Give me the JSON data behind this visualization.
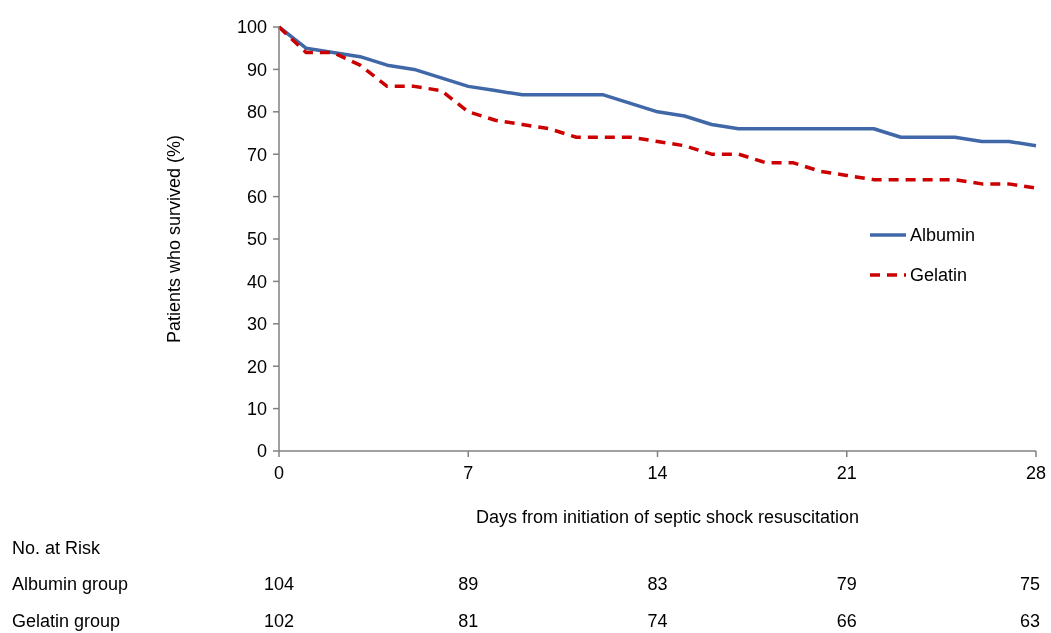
{
  "chart_data": {
    "type": "line",
    "xlabel": "Days from initiation of septic shock resuscitation",
    "ylabel": "Patients who survived (%)",
    "x": [
      0,
      1,
      2,
      3,
      4,
      5,
      6,
      7,
      8,
      9,
      10,
      11,
      12,
      13,
      14,
      15,
      16,
      17,
      18,
      19,
      20,
      21,
      22,
      23,
      24,
      25,
      26,
      27,
      28
    ],
    "series": [
      {
        "name": "Albumin",
        "color": "#4068a8",
        "line_style": "solid",
        "values": [
          100,
          95,
          94,
          93,
          91,
          90,
          88,
          86,
          85,
          84,
          84,
          84,
          84,
          82,
          80,
          79,
          77,
          76,
          76,
          76,
          76,
          76,
          76,
          74,
          74,
          74,
          73,
          73,
          72
        ]
      },
      {
        "name": "Gelatin",
        "color": "#cc0000",
        "line_style": "dashed",
        "values": [
          100,
          94,
          94,
          91,
          86,
          86,
          85,
          80,
          78,
          77,
          76,
          74,
          74,
          74,
          73,
          72,
          70,
          70,
          68,
          68,
          66,
          65,
          64,
          64,
          64,
          64,
          63,
          63,
          62
        ]
      }
    ],
    "xlim": [
      0,
      28
    ],
    "xticks": [
      0,
      7,
      14,
      21,
      28
    ],
    "ylim": [
      0,
      100
    ],
    "yticks": [
      0,
      10,
      20,
      30,
      40,
      50,
      60,
      70,
      80,
      90,
      100
    ],
    "grid": false,
    "legend": "right",
    "marker": "none",
    "annotations": [
      "No. at Risk",
      "Albumin group",
      "104",
      "89",
      "83",
      "79",
      "75",
      "Gelatin group",
      "102",
      "81",
      "74",
      "66",
      "63"
    ]
  }
}
